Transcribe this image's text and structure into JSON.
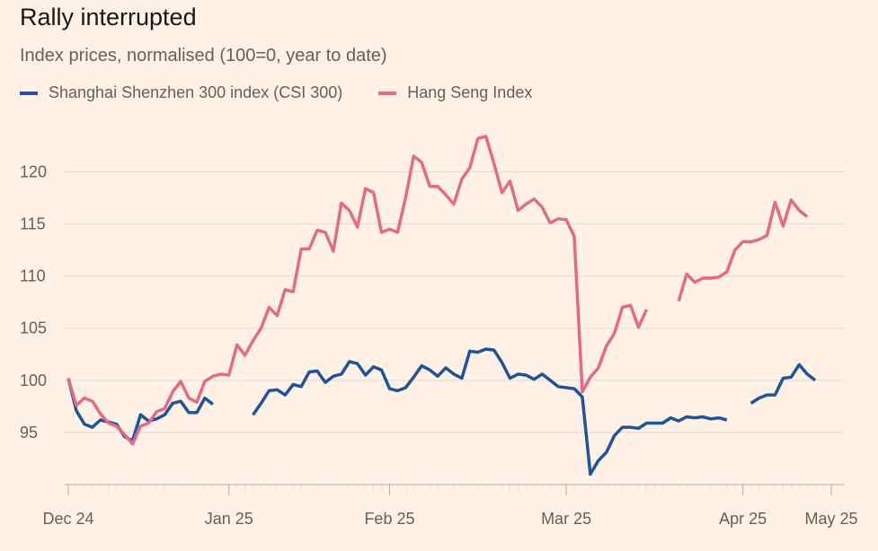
{
  "title": "Rally interrupted",
  "subtitle": "Index prices, normalised (100=0, year to date)",
  "colors": {
    "background": "#fff1e5",
    "csi": "#1f5596",
    "hs": "#e26b8b",
    "grid": "#e8dbcf",
    "axis": "#b9aea5"
  },
  "legend": [
    {
      "label": "Shanghai Shenzhen 300 index (CSI 300)",
      "color": "#1f5596"
    },
    {
      "label": "Hang Seng Index",
      "color": "#e26b8b"
    }
  ],
  "chart_data": {
    "type": "line",
    "title": "Rally interrupted",
    "subtitle": "Index prices, normalised (100=0, year to date)",
    "xlabel": "",
    "ylabel": "",
    "ylim": [
      90,
      124
    ],
    "yticks": [
      95,
      100,
      105,
      110,
      115,
      120
    ],
    "x_range": [
      0,
      95
    ],
    "x_ticks": [
      {
        "label": "Dec 24",
        "x": 0
      },
      {
        "label": "Jan 25",
        "x": 20
      },
      {
        "label": "Feb 25",
        "x": 40
      },
      {
        "label": "Mar 25",
        "x": 62
      },
      {
        "label": "Apr 25",
        "x": 84
      },
      {
        "label": "May 25",
        "x": 95
      }
    ],
    "grid": true,
    "series": [
      {
        "name": "Shanghai Shenzhen 300 index (CSI 300)",
        "color": "#1f5596",
        "segments": [
          [
            [
              0,
              100.2
            ],
            [
              1,
              97.1
            ],
            [
              2,
              95.8
            ],
            [
              3,
              95.5
            ],
            [
              4,
              96.2
            ],
            [
              5,
              96.0
            ],
            [
              6,
              95.8
            ],
            [
              7,
              94.6
            ],
            [
              8,
              94.2
            ],
            [
              9,
              96.7
            ],
            [
              10,
              96.1
            ],
            [
              11,
              96.3
            ],
            [
              12,
              96.7
            ],
            [
              13,
              97.8
            ],
            [
              14,
              98.0
            ],
            [
              15,
              96.9
            ],
            [
              16,
              96.9
            ],
            [
              17,
              98.3
            ],
            [
              18,
              97.7
            ]
          ],
          [
            [
              23,
              96.7
            ],
            [
              24,
              97.8
            ],
            [
              25,
              99.0
            ],
            [
              26,
              99.1
            ],
            [
              27,
              98.6
            ],
            [
              28,
              99.6
            ],
            [
              29,
              99.4
            ],
            [
              30,
              100.8
            ],
            [
              31,
              100.9
            ],
            [
              32,
              99.8
            ],
            [
              33,
              100.4
            ],
            [
              34,
              100.6
            ],
            [
              35,
              101.8
            ],
            [
              36,
              101.6
            ],
            [
              37,
              100.5
            ],
            [
              38,
              101.3
            ],
            [
              39,
              101.0
            ],
            [
              40,
              99.2
            ],
            [
              41,
              99.0
            ],
            [
              42,
              99.3
            ],
            [
              43,
              100.3
            ],
            [
              44,
              101.4
            ],
            [
              45,
              101.0
            ],
            [
              46,
              100.4
            ],
            [
              47,
              101.2
            ],
            [
              48,
              100.6
            ],
            [
              49,
              100.2
            ],
            [
              50,
              102.8
            ],
            [
              51,
              102.7
            ],
            [
              52,
              103.0
            ],
            [
              53,
              102.9
            ],
            [
              54,
              101.7
            ],
            [
              55,
              100.2
            ],
            [
              56,
              100.6
            ],
            [
              57,
              100.5
            ],
            [
              58,
              100.1
            ],
            [
              59,
              100.6
            ],
            [
              60,
              100.0
            ],
            [
              61,
              99.4
            ],
            [
              62,
              99.3
            ],
            [
              63,
              99.2
            ],
            [
              64,
              98.4
            ],
            [
              65,
              91.0
            ],
            [
              66,
              92.3
            ],
            [
              67,
              93.1
            ],
            [
              68,
              94.7
            ],
            [
              69,
              95.5
            ],
            [
              70,
              95.5
            ],
            [
              71,
              95.4
            ],
            [
              72,
              95.9
            ],
            [
              73,
              95.9
            ],
            [
              74,
              95.9
            ],
            [
              75,
              96.4
            ],
            [
              76,
              96.1
            ],
            [
              77,
              96.5
            ],
            [
              78,
              96.4
            ],
            [
              79,
              96.5
            ],
            [
              80,
              96.3
            ],
            [
              81,
              96.4
            ],
            [
              82,
              96.2
            ]
          ],
          [
            [
              85,
              97.8
            ],
            [
              86,
              98.3
            ],
            [
              87,
              98.6
            ],
            [
              88,
              98.6
            ],
            [
              89,
              100.2
            ],
            [
              90,
              100.3
            ],
            [
              91,
              101.5
            ],
            [
              92,
              100.6
            ],
            [
              93,
              100.0
            ]
          ]
        ]
      },
      {
        "name": "Hang Seng Index",
        "color": "#e26b8b",
        "segments": [
          [
            [
              0,
              100.2
            ],
            [
              1,
              97.6
            ],
            [
              2,
              98.3
            ],
            [
              3,
              98.0
            ],
            [
              4,
              96.8
            ],
            [
              5,
              95.9
            ],
            [
              6,
              95.6
            ],
            [
              7,
              94.8
            ],
            [
              8,
              93.9
            ],
            [
              9,
              95.6
            ],
            [
              10,
              95.9
            ],
            [
              11,
              97.0
            ],
            [
              12,
              97.3
            ],
            [
              13,
              98.9
            ],
            [
              14,
              99.9
            ],
            [
              15,
              98.3
            ],
            [
              16,
              97.9
            ],
            [
              17,
              99.9
            ],
            [
              18,
              100.4
            ],
            [
              19,
              100.6
            ],
            [
              20,
              100.5
            ],
            [
              21,
              103.4
            ],
            [
              22,
              102.4
            ],
            [
              23,
              103.8
            ],
            [
              24,
              105.0
            ],
            [
              25,
              107.0
            ],
            [
              26,
              106.2
            ],
            [
              27,
              108.7
            ],
            [
              28,
              108.5
            ],
            [
              29,
              112.6
            ],
            [
              30,
              112.6
            ],
            [
              31,
              114.4
            ],
            [
              32,
              114.2
            ],
            [
              33,
              112.4
            ],
            [
              34,
              117.0
            ],
            [
              35,
              116.3
            ],
            [
              36,
              114.7
            ],
            [
              37,
              118.4
            ],
            [
              38,
              118.0
            ],
            [
              39,
              114.2
            ],
            [
              40,
              114.5
            ],
            [
              41,
              114.2
            ],
            [
              42,
              117.5
            ],
            [
              43,
              121.5
            ],
            [
              44,
              120.9
            ],
            [
              45,
              118.6
            ],
            [
              46,
              118.6
            ],
            [
              47,
              117.8
            ],
            [
              48,
              116.9
            ],
            [
              49,
              119.3
            ],
            [
              50,
              120.4
            ],
            [
              51,
              123.2
            ],
            [
              52,
              123.4
            ],
            [
              53,
              120.8
            ],
            [
              54,
              118.0
            ],
            [
              55,
              119.1
            ],
            [
              56,
              116.3
            ],
            [
              57,
              116.9
            ],
            [
              58,
              117.4
            ],
            [
              59,
              116.6
            ],
            [
              60,
              115.1
            ],
            [
              61,
              115.5
            ],
            [
              62,
              115.4
            ],
            [
              63,
              113.8
            ],
            [
              64,
              98.9
            ],
            [
              65,
              100.3
            ],
            [
              66,
              101.2
            ],
            [
              67,
              103.3
            ],
            [
              68,
              104.5
            ],
            [
              69,
              107.0
            ],
            [
              70,
              107.2
            ],
            [
              71,
              105.1
            ],
            [
              72,
              106.8
            ]
          ],
          [
            [
              76,
              107.6
            ],
            [
              77,
              110.2
            ],
            [
              78,
              109.4
            ],
            [
              79,
              109.8
            ],
            [
              80,
              109.8
            ],
            [
              81,
              109.9
            ],
            [
              82,
              110.4
            ],
            [
              83,
              112.5
            ],
            [
              84,
              113.3
            ],
            [
              85,
              113.3
            ],
            [
              86,
              113.5
            ],
            [
              87,
              113.9
            ],
            [
              88,
              117.1
            ],
            [
              89,
              114.8
            ],
            [
              90,
              117.3
            ],
            [
              91,
              116.3
            ],
            [
              92,
              115.7
            ]
          ]
        ]
      }
    ]
  }
}
